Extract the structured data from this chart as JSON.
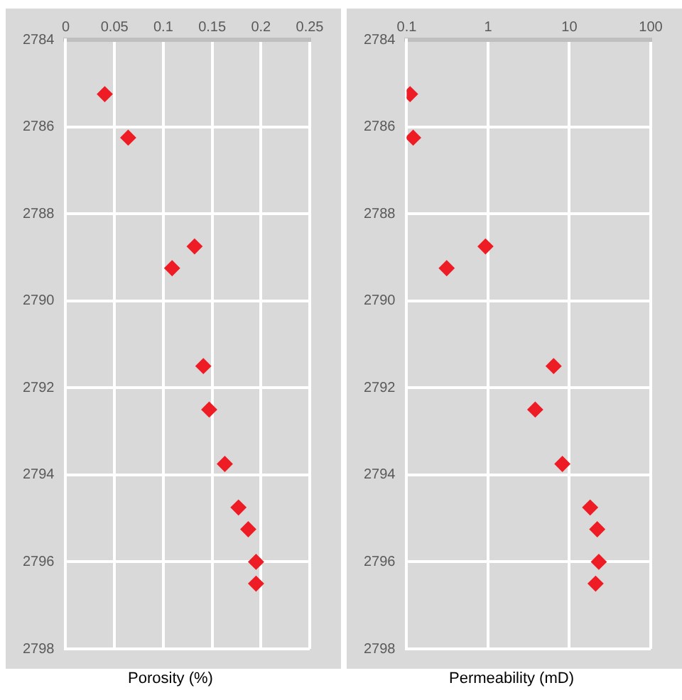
{
  "chart_data": [
    {
      "type": "scatter",
      "xlabel": "Porosity (%)",
      "xlim": [
        0,
        0.25
      ],
      "xticks": [
        0,
        0.05,
        0.1,
        0.15,
        0.2,
        0.25
      ],
      "ylim": [
        2798,
        2784
      ],
      "yticks": [
        2784,
        2786,
        2788,
        2790,
        2792,
        2794,
        2796,
        2798
      ],
      "grid": true,
      "legend": false,
      "marker": "diamond",
      "series": [
        {
          "color": "#ee1c25",
          "x": [
            0.04,
            0.064,
            0.132,
            0.109,
            0.141,
            0.147,
            0.163,
            0.177,
            0.187,
            0.195,
            0.195
          ],
          "values": [
            2785.25,
            2786.25,
            2788.75,
            2789.25,
            2791.5,
            2792.5,
            2793.75,
            2794.75,
            2795.25,
            2796,
            2796.5
          ]
        }
      ]
    },
    {
      "type": "scatter",
      "xlabel": "Permeability (mD)",
      "log": "x",
      "xlim": [
        0.1,
        100
      ],
      "xticks": [
        0.1,
        1,
        10,
        100
      ],
      "ylim": [
        2798,
        2784
      ],
      "yticks": [
        2784,
        2786,
        2788,
        2790,
        2792,
        2794,
        2796,
        2798
      ],
      "grid": true,
      "legend": false,
      "marker": "diamond",
      "series": [
        {
          "color": "#ee1c25",
          "x": [
            0.11,
            0.12,
            0.93,
            0.31,
            6.4,
            3.8,
            8.2,
            18,
            22,
            23,
            21
          ],
          "values": [
            2785.25,
            2786.25,
            2788.75,
            2789.25,
            2791.5,
            2792.5,
            2793.75,
            2794.75,
            2795.25,
            2796,
            2796.5
          ]
        }
      ]
    }
  ]
}
